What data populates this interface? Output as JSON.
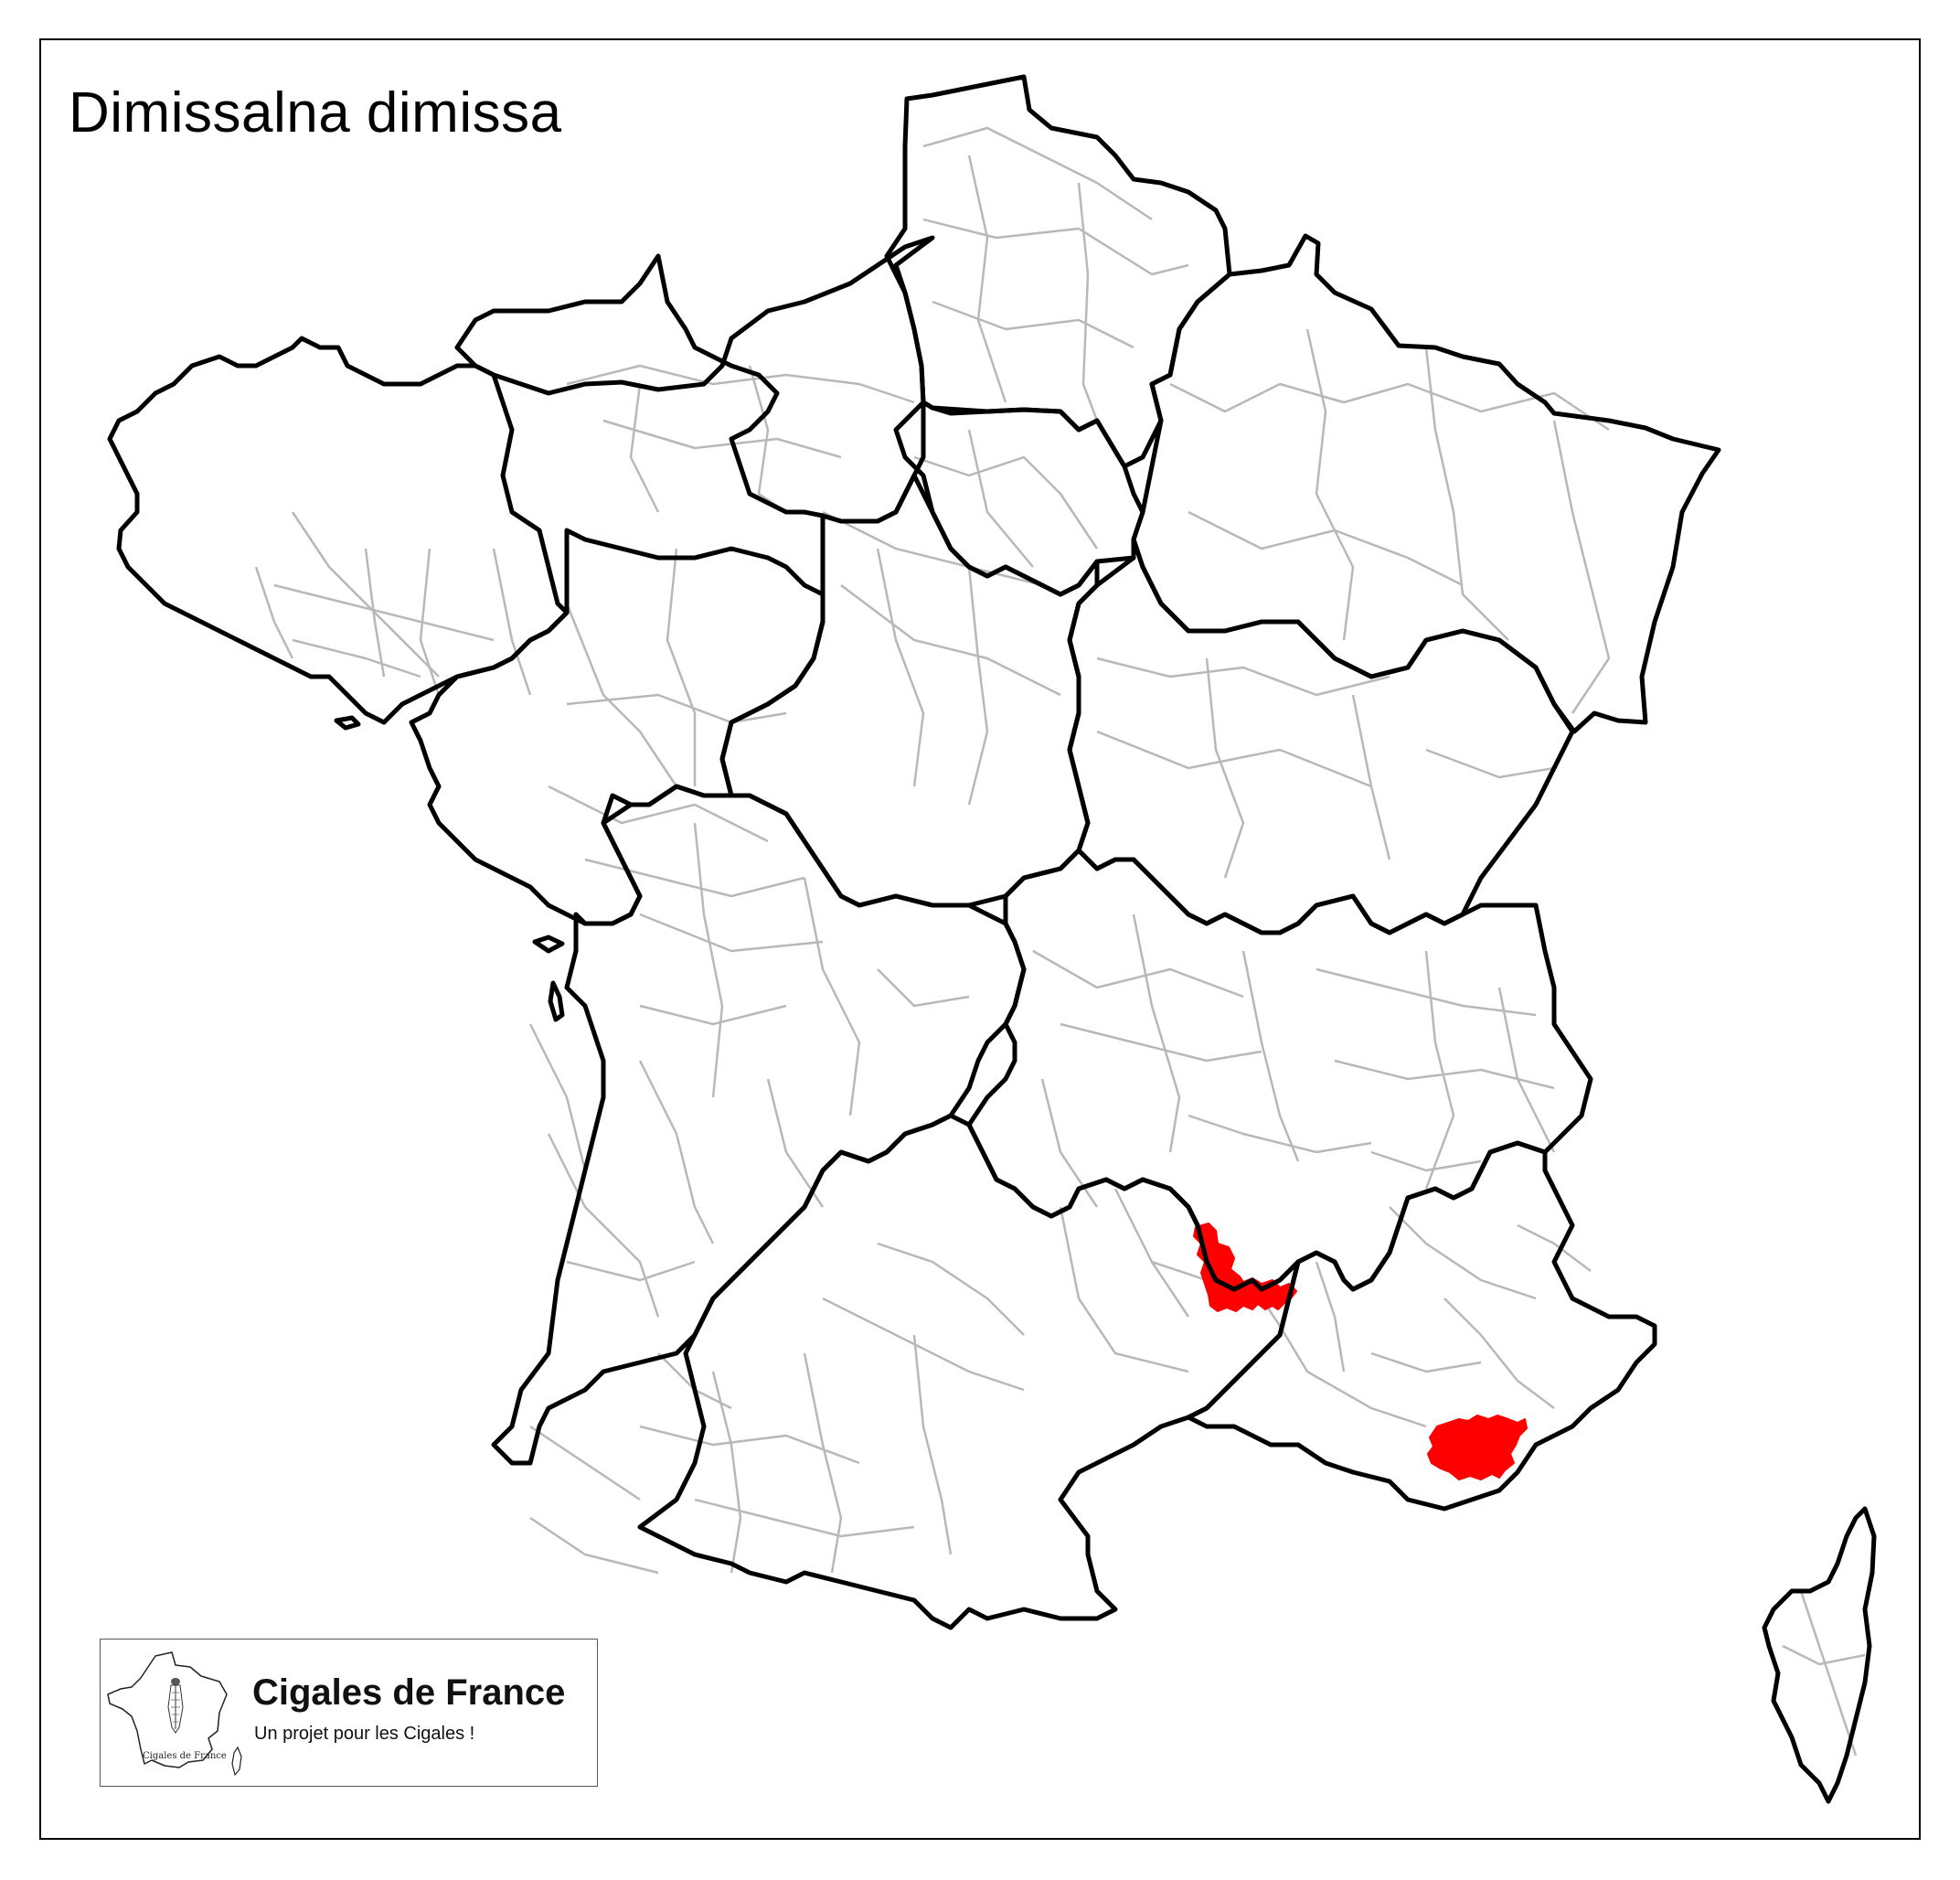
{
  "map": {
    "title": "Dimissalna dimissa",
    "region": "France",
    "colors": {
      "presence": "#ff0000",
      "region_border": "#000000",
      "department_border": "#b8b8b8",
      "background": "#ffffff"
    }
  },
  "legend": {
    "brand": "Cigales de France",
    "tagline": "Un projet pour les Cigales !",
    "logo_caption": "Cigales de France",
    "logo_icon": "cicada-icon"
  }
}
